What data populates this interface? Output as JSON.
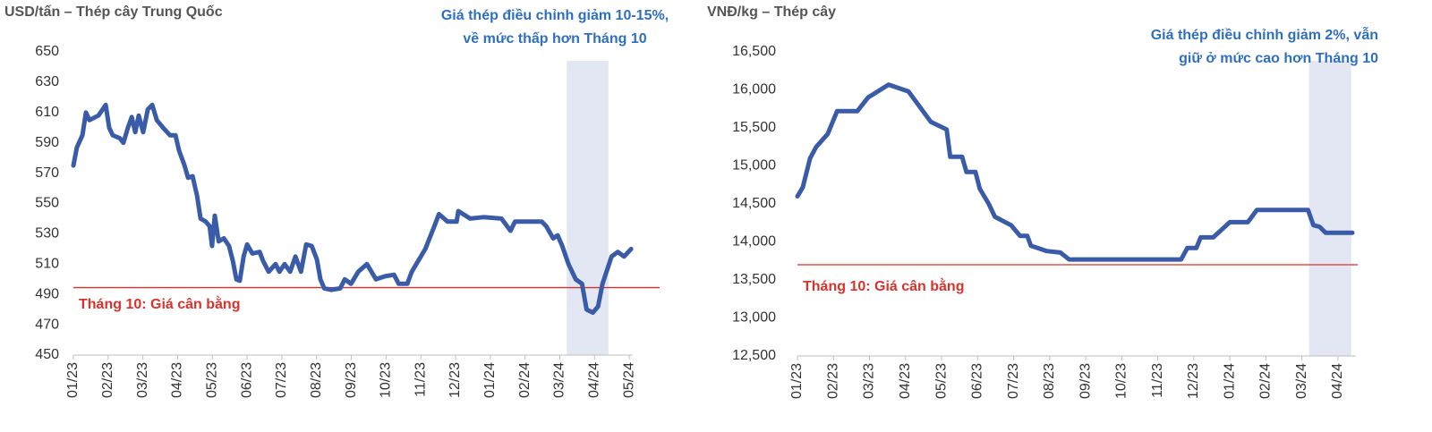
{
  "chart_data": [
    {
      "type": "line",
      "title": "USD/tấn – Thép cây Trung Quốc",
      "annotation": [
        "Giá thép điều chỉnh giảm 10-15%,",
        "về mức thấp hơn Tháng 10"
      ],
      "x": [
        0,
        0.1,
        0.26,
        0.36,
        0.46,
        0.72,
        0.93,
        1.03,
        1.13,
        1.34,
        1.44,
        1.57,
        1.68,
        1.78,
        1.88,
        2.01,
        2.14,
        2.27,
        2.4,
        2.58,
        2.78,
        2.94,
        3.04,
        3.2,
        3.3,
        3.43,
        3.56,
        3.66,
        3.81,
        3.92,
        3.99,
        4.07,
        4.18,
        4.33,
        4.48,
        4.59,
        4.69,
        4.79,
        4.9,
        5,
        5.15,
        5.36,
        5.46,
        5.62,
        5.82,
        5.93,
        6.08,
        6.24,
        6.39,
        6.55,
        6.7,
        6.86,
        7.01,
        7.11,
        7.22,
        7.42,
        7.68,
        7.81,
        7.99,
        8.2,
        8.45,
        8.71,
        8.97,
        9.23,
        9.36,
        9.61,
        9.74,
        10.13,
        10.39,
        10.52,
        10.77,
        11.03,
        11.08,
        11.42,
        11.8,
        12.32,
        12.58,
        12.71,
        13.48,
        13.61,
        13.81,
        13.94,
        14.07,
        14.25,
        14.46,
        14.64,
        14.77,
        14.95,
        15.1,
        15.23,
        15.49,
        15.67,
        15.85,
        16.05
      ],
      "series": [
        {
          "color": "#3a5ca8",
          "values": [
            575,
            587,
            595,
            610,
            605,
            608,
            615,
            600,
            595,
            593,
            590,
            600,
            607,
            597,
            608,
            597,
            612,
            615,
            605,
            600,
            595,
            595,
            585,
            575,
            567,
            568,
            555,
            540,
            538,
            535,
            522,
            542,
            525,
            527,
            522,
            512,
            500,
            499,
            515,
            523,
            517,
            518,
            512,
            505,
            510,
            505,
            510,
            505,
            515,
            505,
            523,
            522,
            513,
            500,
            494,
            493,
            494,
            500,
            497,
            505,
            510,
            500,
            502,
            503,
            497,
            497,
            505,
            520,
            535,
            543,
            538,
            538,
            545,
            540,
            541,
            540,
            532,
            538,
            538,
            535,
            527,
            529,
            522,
            510,
            500,
            497,
            480,
            478,
            482,
            497,
            515,
            518,
            515,
            520
          ]
        }
      ],
      "xlim": [
        0,
        16.1
      ],
      "xticks": [
        {
          "value": 0,
          "label": "01/23"
        },
        {
          "value": 1,
          "label": "02/23"
        },
        {
          "value": 2,
          "label": "03/23"
        },
        {
          "value": 3,
          "label": "04/23"
        },
        {
          "value": 4,
          "label": "05/23"
        },
        {
          "value": 5,
          "label": "06/23"
        },
        {
          "value": 6,
          "label": "07/23"
        },
        {
          "value": 7,
          "label": "08/23"
        },
        {
          "value": 8,
          "label": "09/23"
        },
        {
          "value": 9,
          "label": "10/23"
        },
        {
          "value": 10,
          "label": "11/23"
        },
        {
          "value": 11,
          "label": "12/23"
        },
        {
          "value": 12,
          "label": "01/24"
        },
        {
          "value": 13,
          "label": "02/24"
        },
        {
          "value": 14,
          "label": "03/24"
        },
        {
          "value": 15,
          "label": "04/24"
        },
        {
          "value": 16,
          "label": "05/24"
        }
      ],
      "ylim": [
        450,
        650
      ],
      "yticks": [
        450,
        470,
        490,
        510,
        530,
        550,
        570,
        590,
        610,
        630,
        650
      ],
      "highlight": [
        14.2,
        15.4
      ],
      "reference_line": {
        "value": 494.5,
        "label": "Tháng 10: Giá cân bằng",
        "color": "#d9322b"
      }
    },
    {
      "type": "line",
      "title": "VNĐ/kg – Thép cây",
      "annotation": [
        "Giá thép điều chỉnh giảm 2%, vẫn",
        "giữ ở mức cao hơn Tháng 10"
      ],
      "x": [
        0,
        0.15,
        0.35,
        0.52,
        0.84,
        1.1,
        1.66,
        1.96,
        2.53,
        3.08,
        3.7,
        4.14,
        4.24,
        4.57,
        4.69,
        4.94,
        5.06,
        5.31,
        5.48,
        5.93,
        6.18,
        6.38,
        6.48,
        6.92,
        7.3,
        7.54,
        10.65,
        10.82,
        11.07,
        11.19,
        11.54,
        12,
        12.5,
        12.75,
        14.17,
        14.32,
        14.49,
        14.66,
        15.4
      ],
      "series": [
        {
          "color": "#3a5ca8",
          "values": [
            14600,
            14720,
            15100,
            15250,
            15420,
            15720,
            15720,
            15900,
            16070,
            15980,
            15580,
            15480,
            15120,
            15120,
            14920,
            14920,
            14700,
            14500,
            14330,
            14220,
            14080,
            14080,
            13950,
            13880,
            13860,
            13770,
            13770,
            13920,
            13920,
            14060,
            14060,
            14260,
            14260,
            14420,
            14420,
            14220,
            14200,
            14120,
            14120
          ]
        }
      ],
      "xlim": [
        0,
        15.5
      ],
      "xticks": [
        {
          "value": 0,
          "label": "01/23"
        },
        {
          "value": 1,
          "label": "02/23"
        },
        {
          "value": 2,
          "label": "03/23"
        },
        {
          "value": 3,
          "label": "04/23"
        },
        {
          "value": 4,
          "label": "05/23"
        },
        {
          "value": 5,
          "label": "06/23"
        },
        {
          "value": 6,
          "label": "07/23"
        },
        {
          "value": 7,
          "label": "08/23"
        },
        {
          "value": 8,
          "label": "09/23"
        },
        {
          "value": 9,
          "label": "10/23"
        },
        {
          "value": 10,
          "label": "11/23"
        },
        {
          "value": 11,
          "label": "12/23"
        },
        {
          "value": 12,
          "label": "01/24"
        },
        {
          "value": 13,
          "label": "02/24"
        },
        {
          "value": 14,
          "label": "03/24"
        },
        {
          "value": 15,
          "label": "04/24"
        }
      ],
      "ylim": [
        12500,
        16500
      ],
      "yticks": [
        {
          "value": 12500,
          "label": "12,500"
        },
        {
          "value": 13000,
          "label": "13,000"
        },
        {
          "value": 13500,
          "label": "13,500"
        },
        {
          "value": 14000,
          "label": "14,000"
        },
        {
          "value": 14500,
          "label": "14,500"
        },
        {
          "value": 15000,
          "label": "15,000"
        },
        {
          "value": 15500,
          "label": "15,500"
        },
        {
          "value": 16000,
          "label": "16,000"
        },
        {
          "value": 16500,
          "label": "16,500"
        }
      ],
      "highlight": [
        14.2,
        15.37
      ],
      "reference_line": {
        "value": 13700,
        "label": "Tháng 10: Giá cân bằng",
        "color": "#d9322b"
      }
    }
  ]
}
